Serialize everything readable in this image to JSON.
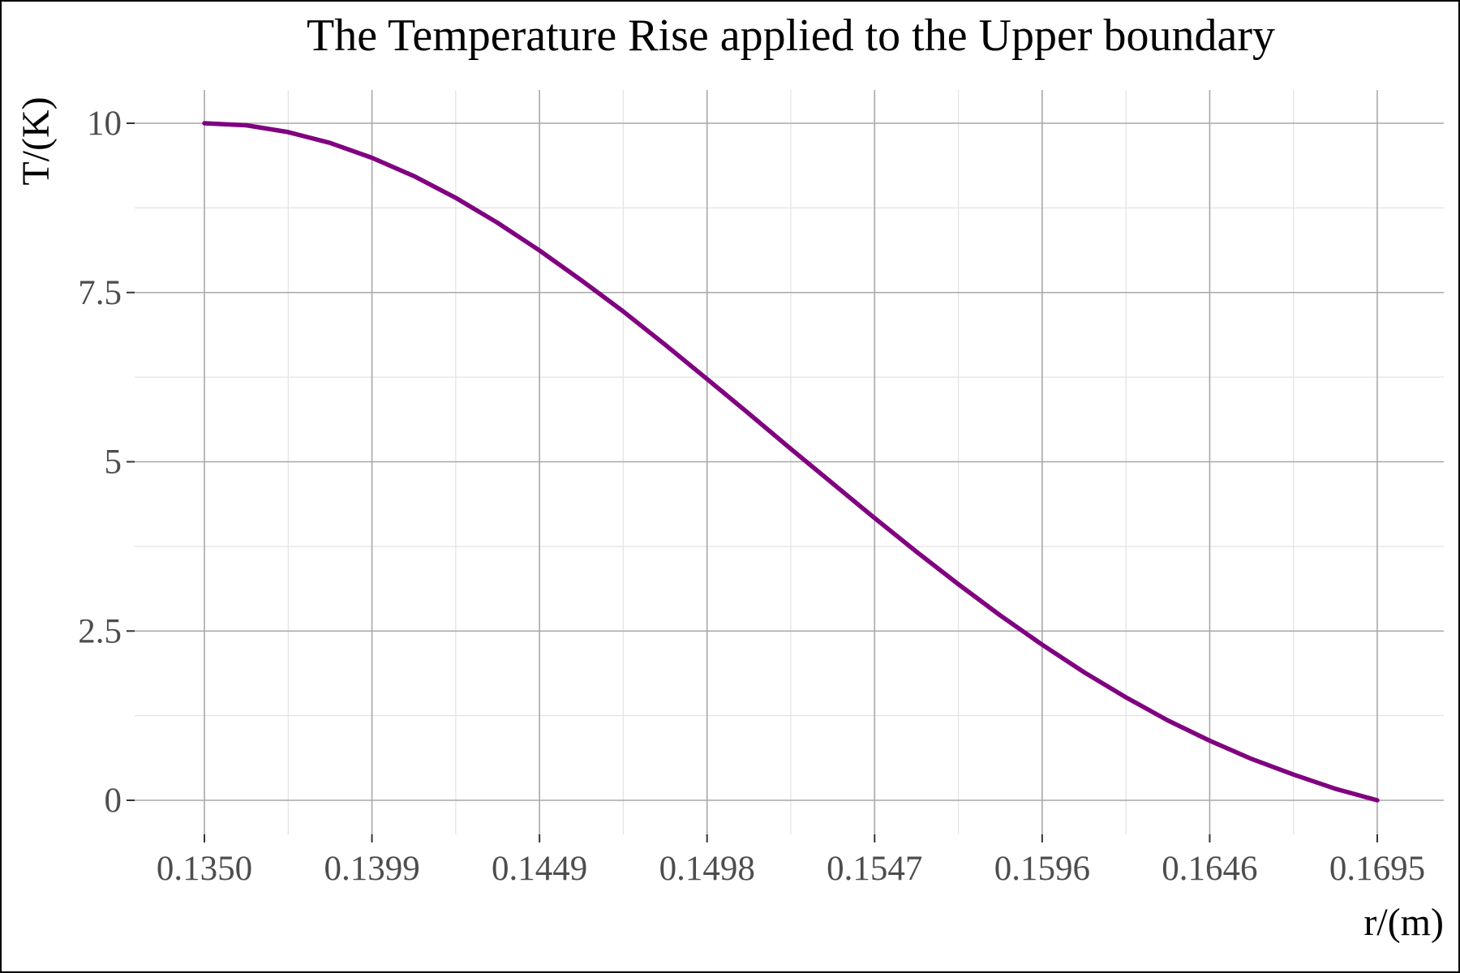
{
  "chart_data": {
    "type": "line",
    "title": "The Temperature Rise applied to the Upper boundary",
    "xlabel": "r/(m)",
    "ylabel": "T/(K)",
    "x_ticks": [
      "0.1350",
      "0.1399",
      "0.1449",
      "0.1498",
      "0.1547",
      "0.1596",
      "0.1646",
      "0.1695"
    ],
    "y_ticks": [
      "0",
      "2.5",
      "5",
      "7.5",
      "10"
    ],
    "xlim": [
      0.135,
      0.1695
    ],
    "ylim": [
      0,
      10
    ],
    "grid": true,
    "legend": "none",
    "series": [
      {
        "color": "#800080",
        "x": [
          0.135,
          0.13623,
          0.13746,
          0.13869,
          0.13993,
          0.14116,
          0.14239,
          0.14362,
          0.14486,
          0.14609,
          0.14732,
          0.14855,
          0.14979,
          0.15102,
          0.15225,
          0.15348,
          0.15471,
          0.15595,
          0.15718,
          0.15841,
          0.15964,
          0.16088,
          0.16211,
          0.16334,
          0.16457,
          0.16581,
          0.16704,
          0.16827,
          0.1695
        ],
        "values": [
          10.0,
          9.97,
          9.87,
          9.71,
          9.49,
          9.22,
          8.9,
          8.53,
          8.12,
          7.68,
          7.22,
          6.73,
          6.22,
          5.71,
          5.19,
          4.68,
          4.17,
          3.67,
          3.19,
          2.73,
          2.3,
          1.89,
          1.52,
          1.18,
          0.88,
          0.61,
          0.38,
          0.17,
          0.0
        ]
      }
    ]
  }
}
